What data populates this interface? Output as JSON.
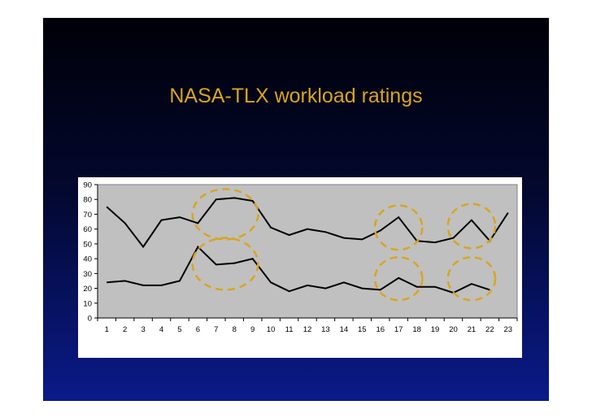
{
  "slide": {
    "title": "NASA-TLX workload ratings"
  },
  "chart_data": {
    "type": "line",
    "title": "",
    "xlabel": "",
    "ylabel": "",
    "x": [
      1,
      2,
      3,
      4,
      5,
      6,
      7,
      8,
      9,
      10,
      11,
      12,
      13,
      14,
      15,
      16,
      17,
      18,
      19,
      20,
      21,
      22,
      23
    ],
    "ylim": [
      0,
      90
    ],
    "yticks": [
      0,
      10,
      20,
      30,
      40,
      50,
      60,
      70,
      80,
      90
    ],
    "grid": false,
    "legend": "none",
    "plot_background": "#c0c0c0",
    "series": [
      {
        "values": [
          75,
          64,
          48,
          66,
          68,
          64,
          80,
          81,
          79,
          61,
          56,
          60,
          58,
          54,
          53,
          59,
          68,
          52,
          51,
          54,
          66,
          52,
          71
        ],
        "color": "#000000"
      },
      {
        "values": [
          24,
          25,
          22,
          22,
          25,
          48,
          36,
          37,
          40,
          24,
          18,
          22,
          20,
          24,
          20,
          19,
          27,
          21,
          21,
          17,
          23,
          19,
          null
        ],
        "color": "#000000"
      }
    ],
    "annotations": [
      {
        "shape": "dashed-ellipse",
        "color": "#d9a521",
        "x_range": [
          6,
          9
        ],
        "y_range": [
          53,
          87
        ]
      },
      {
        "shape": "dashed-ellipse",
        "color": "#d9a521",
        "x_range": [
          6,
          9
        ],
        "y_range": [
          19,
          54
        ]
      },
      {
        "shape": "dashed-ellipse",
        "color": "#d9a521",
        "x_range": [
          16,
          18
        ],
        "y_range": [
          46,
          76
        ]
      },
      {
        "shape": "dashed-ellipse",
        "color": "#d9a521",
        "x_range": [
          16,
          18
        ],
        "y_range": [
          12,
          41
        ]
      },
      {
        "shape": "dashed-ellipse",
        "color": "#d9a521",
        "x_range": [
          20,
          22
        ],
        "y_range": [
          47,
          77
        ]
      },
      {
        "shape": "dashed-ellipse",
        "color": "#d9a521",
        "x_range": [
          20,
          22
        ],
        "y_range": [
          12,
          41
        ]
      }
    ]
  }
}
